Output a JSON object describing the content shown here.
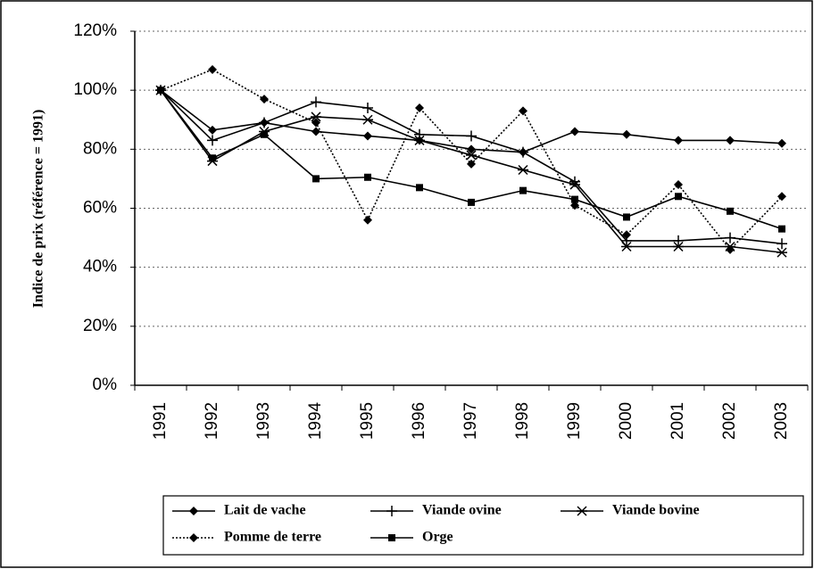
{
  "chart_data": {
    "type": "line",
    "y_label": "Indice de prix (référence = 1991)",
    "categories": [
      "1991",
      "1992",
      "1993",
      "1994",
      "1995",
      "1996",
      "1997",
      "1998",
      "1999",
      "2000",
      "2001",
      "2002",
      "2003"
    ],
    "ylim": [
      0,
      120
    ],
    "yticks": [
      {
        "value": 0,
        "label": "0%"
      },
      {
        "value": 20,
        "label": "20%"
      },
      {
        "value": 40,
        "label": "40%"
      },
      {
        "value": 60,
        "label": "60%"
      },
      {
        "value": 80,
        "label": "80%"
      },
      {
        "value": 100,
        "label": "100%"
      },
      {
        "value": 120,
        "label": "120%"
      }
    ],
    "grid": true,
    "legend": "bottom",
    "series": [
      {
        "name": "Lait de vache",
        "color": "#000000",
        "marker": "diamond",
        "line_style": "solid",
        "values": [
          100,
          86.5,
          89,
          86,
          84.5,
          83,
          80,
          79,
          86,
          85,
          83,
          83,
          82
        ]
      },
      {
        "name": "Viande ovine",
        "color": "#000000",
        "marker": "plus",
        "line_style": "solid",
        "values": [
          100,
          83,
          89,
          96,
          94,
          85,
          84.5,
          79,
          69,
          49,
          49,
          50,
          48
        ]
      },
      {
        "name": "Viande bovine",
        "color": "#000000",
        "marker": "star",
        "line_style": "solid",
        "values": [
          100,
          76,
          86,
          91,
          90,
          83,
          78,
          73,
          68,
          47,
          47,
          47,
          45
        ]
      },
      {
        "name": "Pomme de terre",
        "color": "#000000",
        "marker": "diamond",
        "line_style": "dotted",
        "values": [
          100,
          107,
          97,
          89,
          56,
          94,
          75,
          93,
          61,
          51,
          68,
          46,
          64
        ]
      },
      {
        "name": "Orge",
        "color": "#000000",
        "marker": "square",
        "line_style": "solid",
        "values": [
          100,
          77,
          85,
          70,
          70.5,
          67,
          62,
          66,
          63,
          57,
          64,
          59,
          53
        ]
      }
    ]
  }
}
